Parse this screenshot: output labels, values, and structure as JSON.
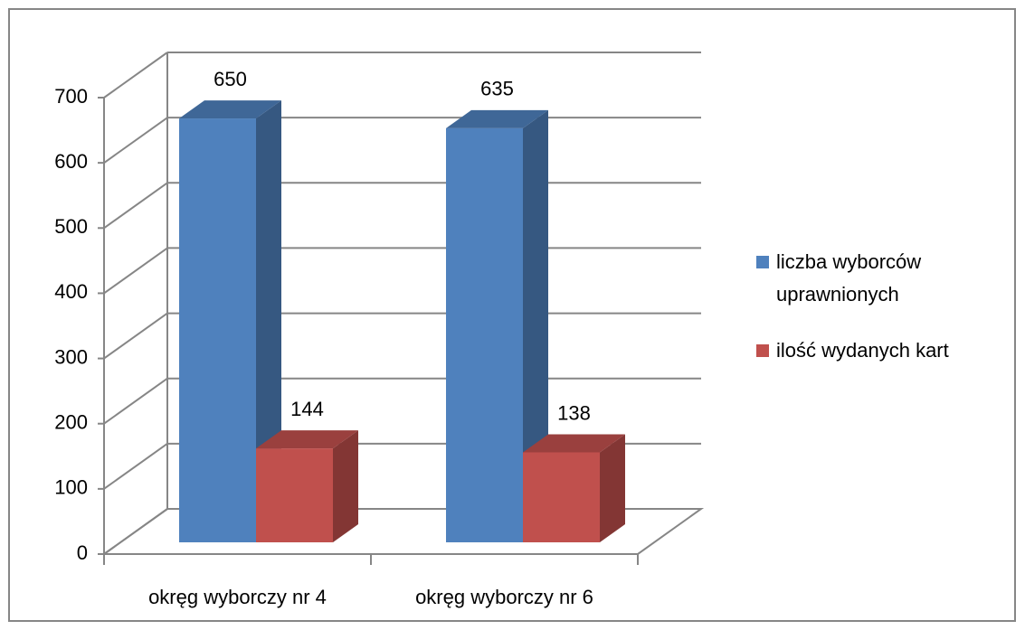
{
  "chart_data": {
    "type": "bar3d",
    "categories": [
      "okręg wyborczy nr 4",
      "okręg wyborczy nr 6"
    ],
    "series": [
      {
        "name": "liczba wyborców uprawnionych",
        "color": "#4f81bd",
        "values": [
          650,
          635
        ]
      },
      {
        "name": "ilość wydanych kart",
        "color": "#c0504d",
        "values": [
          144,
          138
        ]
      }
    ],
    "ylim": [
      0,
      700
    ],
    "yticks": [
      0,
      100,
      200,
      300,
      400,
      500,
      600,
      700
    ],
    "grid": true,
    "legend": "right"
  }
}
